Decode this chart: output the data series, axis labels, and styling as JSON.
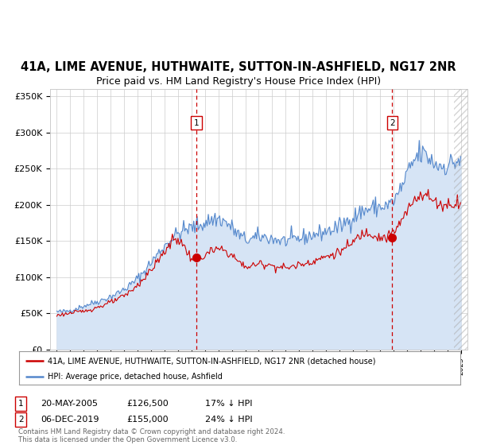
{
  "title": "41A, LIME AVENUE, HUTHWAITE, SUTTON-IN-ASHFIELD, NG17 2NR",
  "subtitle": "Price paid vs. HM Land Registry's House Price Index (HPI)",
  "title_fontsize": 10.5,
  "subtitle_fontsize": 9,
  "bg_color": "#ffffff",
  "plot_bg_color": "#ffffff",
  "hpi_fill_color": "#d6e4f5",
  "hpi_line_color": "#5588cc",
  "price_line_color": "#cc0000",
  "vline_color": "#cc0000",
  "ylim": [
    0,
    360000
  ],
  "yticks": [
    0,
    50000,
    100000,
    150000,
    200000,
    250000,
    300000,
    350000
  ],
  "ytick_labels": [
    "£0",
    "£50K",
    "£100K",
    "£150K",
    "£200K",
    "£250K",
    "£300K",
    "£350K"
  ],
  "legend1_label": "41A, LIME AVENUE, HUTHWAITE, SUTTON-IN-ASHFIELD, NG17 2NR (detached house)",
  "legend2_label": "HPI: Average price, detached house, Ashfield",
  "sale1_x": 2005.38,
  "sale1_price": 126500,
  "sale2_x": 2019.92,
  "sale2_price": 155000,
  "xlim_left": 1994.5,
  "xlim_right": 2025.5,
  "copyright": "Contains HM Land Registry data © Crown copyright and database right 2024.\nThis data is licensed under the Open Government Licence v3.0.",
  "hpi_seed": 42,
  "price_seed": 123,
  "hpi_base_values": [
    52000,
    54000,
    60000,
    66000,
    73000,
    83000,
    98000,
    120000,
    143000,
    160000,
    168000,
    175000,
    180000,
    168000,
    152000,
    155000,
    153000,
    150000,
    153000,
    158000,
    163000,
    170000,
    183000,
    193000,
    197000,
    205000,
    240000,
    270000,
    258000,
    255000,
    262000
  ],
  "price_base_values": [
    47000,
    50000,
    53000,
    58000,
    65000,
    74000,
    89000,
    110000,
    135000,
    152000,
    126500,
    130000,
    138000,
    130000,
    115000,
    118000,
    116000,
    113000,
    117000,
    122000,
    128000,
    135000,
    148000,
    162000,
    155000,
    162000,
    190000,
    215000,
    205000,
    200000,
    205000
  ],
  "hpi_noise_scale": 3500,
  "price_noise_scale": 2500,
  "hatch_start": 2024.5
}
